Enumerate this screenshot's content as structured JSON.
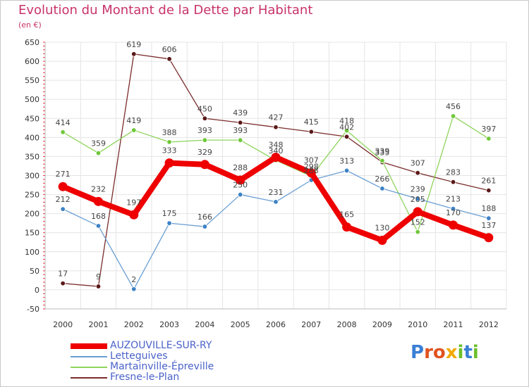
{
  "header": {
    "title": "Evolution du Montant de la Dette par Habitant",
    "subtitle": "(en €)"
  },
  "brand": {
    "letters": [
      {
        "ch": "P",
        "color": "#3a7fd6"
      },
      {
        "ch": "r",
        "color": "#e0531f"
      },
      {
        "ch": "o",
        "color": "#e0531f"
      },
      {
        "ch": "x",
        "color": "#f2a900"
      },
      {
        "ch": "i",
        "color": "#6bbf2a"
      },
      {
        "ch": "t",
        "color": "#3a7fd6"
      },
      {
        "ch": "i",
        "color": "#6bbf2a"
      }
    ]
  },
  "chart_data": {
    "type": "line",
    "title": "Evolution du Montant de la Dette par Habitant",
    "subtitle": "(en €)",
    "xlabel": "",
    "ylabel": "",
    "x": [
      "2000",
      "2001",
      "2002",
      "2003",
      "2004",
      "2005",
      "2006",
      "2007",
      "2008",
      "2009",
      "2010",
      "2011",
      "2012"
    ],
    "ylim": [
      -50,
      650
    ],
    "yticks": [
      -50,
      0,
      50,
      100,
      150,
      200,
      250,
      300,
      350,
      400,
      450,
      500,
      550,
      600,
      650
    ],
    "grid": true,
    "legend_position": "bottom-left",
    "series": [
      {
        "name": "Fresne-le-Plan",
        "color": "#7a2c2c",
        "marker": "#5a1818",
        "width": 1.3,
        "values": [
          17,
          9,
          619,
          606,
          450,
          439,
          427,
          415,
          402,
          335,
          307,
          283,
          261
        ],
        "labels": [
          "17",
          "9",
          "619",
          "606",
          "450",
          "439",
          "427",
          "415",
          "402",
          "335",
          "307",
          "283",
          "261"
        ]
      },
      {
        "name": "Martainville-Épreville",
        "color": "#8ed45a",
        "marker": "#6fc83a",
        "width": 1.3,
        "values": [
          414,
          359,
          419,
          388,
          393,
          393,
          340,
          298,
          418,
          339,
          152,
          456,
          397
        ],
        "labels": [
          "414",
          "359",
          "419",
          "388",
          "393",
          "393",
          "340",
          "298",
          "418",
          "339",
          "152",
          "456",
          "397"
        ]
      },
      {
        "name": "Letteguives",
        "color": "#6a9fd3",
        "marker": "#3d82c6",
        "width": 1.3,
        "values": [
          212,
          168,
          2,
          175,
          166,
          250,
          231,
          288,
          313,
          266,
          239,
          213,
          188
        ],
        "labels": [
          "212",
          "168",
          "2",
          "175",
          "166",
          "250",
          "231",
          "288",
          "313",
          "266",
          "239",
          "213",
          "188"
        ]
      },
      {
        "name": "AUZOUVILLE-SUR-RY",
        "color": "#ee0000",
        "marker": "#ee0000",
        "width": 8,
        "values": [
          271,
          232,
          197,
          333,
          329,
          288,
          348,
          307,
          165,
          130,
          205,
          170,
          137
        ],
        "labels": [
          "271",
          "232",
          "197",
          "333",
          "329",
          "288",
          "348",
          "307",
          "165",
          "130",
          "205",
          "170",
          "137"
        ]
      }
    ],
    "legend": [
      "AUZOUVILLE-SUR-RY",
      "Letteguives",
      "Martainville-Épreville",
      "Fresne-le-Plan"
    ]
  }
}
